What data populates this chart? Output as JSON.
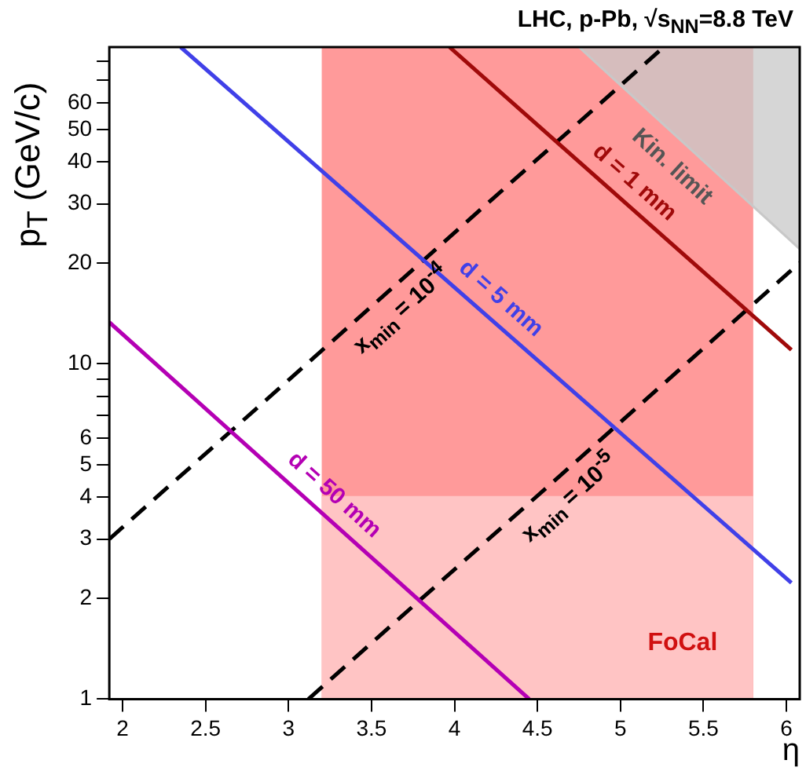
{
  "chart_data": {
    "type": "line",
    "title": "LHC, p-Pb, √s$_{NN}$=8.8 TeV",
    "xlabel": "η",
    "ylabel": "p$_{T}$ (GeV/c)",
    "xlim": [
      1.92,
      6.08
    ],
    "xticks": [
      2,
      2.5,
      3,
      3.5,
      4,
      4.5,
      5,
      5.5,
      6
    ],
    "ylim": [
      1,
      88
    ],
    "yticks": [
      1,
      2,
      3,
      4,
      5,
      6,
      {
        "value": 7,
        "label": null
      },
      {
        "value": 8,
        "label": null
      },
      {
        "value": 9,
        "label": null
      },
      10,
      20,
      30,
      40,
      50,
      60,
      {
        "value": 70,
        "label": null
      },
      {
        "value": 80,
        "label": null
      }
    ],
    "log": "y",
    "grid": false,
    "legend": false,
    "marker": "none",
    "bands": [
      {
        "axis": "x",
        "from": 3.2,
        "to": 5.8,
        "label": "FoCal",
        "color": "#ff9a9a"
      }
    ],
    "series": [
      {
        "type": "area",
        "color": "#ffc4c4",
        "x": [
          3.2,
          5.8
        ],
        "values": [
          4,
          4
        ]
      },
      {
        "type": "area",
        "name": "Kin. limit",
        "color": "#c8c8c8",
        "x": [
          4.75,
          6.08
        ],
        "values": [
          88,
          22
        ]
      },
      {
        "name": "d = 1 mm",
        "color": "#a00a0a",
        "x": [
          3.97,
          6.03
        ],
        "values": [
          88,
          11
        ]
      },
      {
        "name": "d = 5 mm",
        "color": "#4040e8",
        "x": [
          2.35,
          6.03
        ],
        "values": [
          88,
          2.22
        ]
      },
      {
        "name": "d = 50 mm",
        "color": "#b400b4",
        "x": [
          1.92,
          4.45
        ],
        "values": [
          13.3,
          1
        ]
      },
      {
        "name": "x$_{min}$ = 10$^{-4}$",
        "color": "#000000",
        "line_style": "dashed",
        "x": [
          1.92,
          5.26
        ],
        "values": [
          3,
          88
        ]
      },
      {
        "name": "x$_{min}$ = 10$^{-5}$",
        "color": "#000000",
        "line_style": "dashed",
        "x": [
          3.12,
          6.08
        ],
        "values": [
          1,
          20
        ]
      }
    ]
  }
}
